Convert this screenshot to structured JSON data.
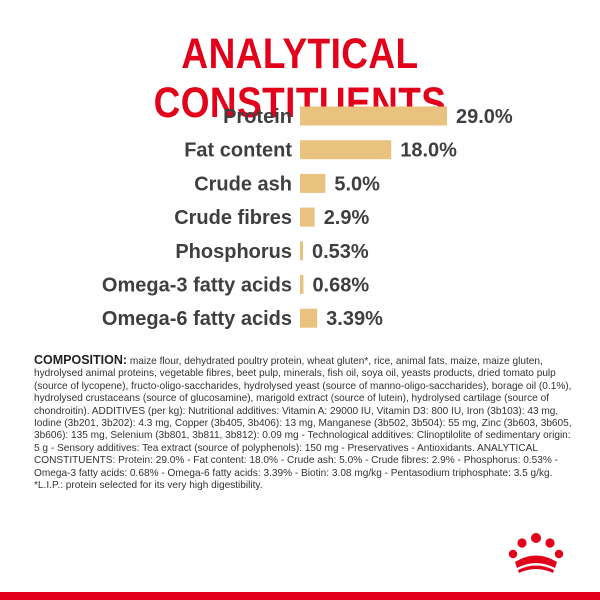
{
  "title": "ANALYTICAL CONSTITUENTS",
  "colors": {
    "accent": "#e2001a",
    "bar": "#e9c27f",
    "text": "#3f3f3f"
  },
  "chart_data": {
    "type": "bar",
    "orientation": "horizontal",
    "categories": [
      "Protein",
      "Fat content",
      "Crude ash",
      "Crude fibres",
      "Phosphorus",
      "Omega-3 fatty acids",
      "Omega-6 fatty acids"
    ],
    "values": [
      29.0,
      18.0,
      5.0,
      2.9,
      0.53,
      0.68,
      3.39
    ],
    "value_labels": [
      "29.0%",
      "18.0%",
      "5.0%",
      "2.9%",
      "0.53%",
      "0.68%",
      "3.39%"
    ],
    "xlim": [
      0,
      29.0
    ],
    "title": "ANALYTICAL CONSTITUENTS",
    "grid": false,
    "legend": "none"
  },
  "composition": {
    "heading": "COMPOSITION:",
    "text": " maize flour, dehydrated poultry protein, wheat gluten*, rice, animal fats, maize, maize gluten, hydrolysed animal proteins, vegetable fibres, beet pulp, minerals, fish oil, soya oil, yeasts products, dried tomato pulp (source of lycopene), fructo-oligo-saccharides, hydrolysed yeast (source of manno-oligo-saccharides), borage oil (0.1%), hydrolysed crustaceans (source of glucosamine), marigold extract (source of lutein), hydrolysed cartilage (source of chondroitin). ADDITIVES (per kg): Nutritional additives: Vitamin A: 29000 IU, Vitamin D3: 800 IU, Iron (3b103): 43 mg, Iodine (3b201, 3b202): 4.3 mg, Copper (3b405, 3b406): 13 mg, Manganese (3b502, 3b504): 55 mg, Zinc (3b603, 3b605, 3b606): 135 mg, Selenium (3b801, 3b811, 3b812): 0.09 mg - Technological additives: Clinoptilolite of sedimentary origin: 5 g - Sensory additives: Tea extract (source of polyphenols): 150 mg - Preservatives - Antioxidants. ANALYTICAL CONSTITUENTS: Protein: 29.0% - Fat content: 18.0% - Crude ash: 5.0% - Crude fibres: 2.9% - Phosphorus: 0.53% - Omega-3 fatty acids: 0.68% - Omega-6 fatty acids: 3.39% - Biotin: 3.08 mg/kg - Pentasodium triphosphate: 3.5 g/kg. *L.I.P.: protein selected for its very high digestibility."
  },
  "brand_logo": {
    "icon": "crown-logo-icon"
  }
}
